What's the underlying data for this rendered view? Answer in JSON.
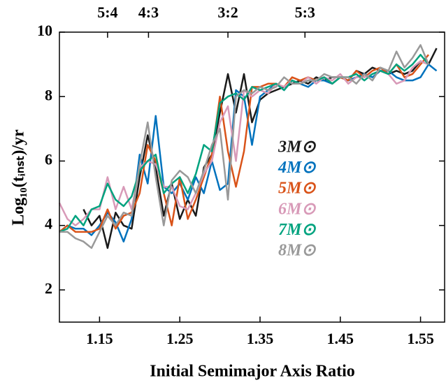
{
  "chart_data": {
    "type": "line",
    "xlabel": "Initial Semimajor Axis Ratio",
    "ylabel": "Log₁₀(tᵢₙₛₜ)/yr",
    "xlim": [
      1.1,
      1.58
    ],
    "ylim": [
      1,
      10
    ],
    "xticks": [
      1.15,
      1.25,
      1.35,
      1.45,
      1.55
    ],
    "yticks": [
      2,
      4,
      6,
      8,
      10
    ],
    "x2ticks": [
      {
        "value": 1.16,
        "label": "5:4"
      },
      {
        "value": 1.211,
        "label": "4:3"
      },
      {
        "value": 1.31,
        "label": "3:2"
      },
      {
        "value": 1.406,
        "label": "5:3"
      }
    ],
    "grid": false,
    "x": [
      1.1,
      1.11,
      1.12,
      1.13,
      1.14,
      1.15,
      1.16,
      1.17,
      1.18,
      1.19,
      1.2,
      1.21,
      1.22,
      1.23,
      1.24,
      1.25,
      1.26,
      1.27,
      1.28,
      1.29,
      1.3,
      1.31,
      1.32,
      1.33,
      1.34,
      1.35,
      1.36,
      1.37,
      1.38,
      1.39,
      1.4,
      1.41,
      1.42,
      1.43,
      1.44,
      1.45,
      1.46,
      1.47,
      1.48,
      1.49,
      1.5,
      1.51,
      1.52,
      1.53,
      1.54,
      1.55,
      1.56,
      1.57
    ],
    "series": [
      {
        "name": "3M⊙",
        "color": "#1a1a1a",
        "values": [
          null,
          null,
          null,
          4.5,
          4.0,
          4.3,
          3.3,
          4.4,
          4.0,
          3.9,
          5.5,
          6.8,
          5.8,
          4.3,
          5.3,
          4.2,
          4.8,
          4.3,
          5.8,
          6.2,
          7.5,
          8.7,
          7.5,
          8.7,
          7.2,
          7.9,
          8.1,
          8.2,
          8.3,
          8.4,
          8.5,
          8.4,
          8.6,
          8.5,
          8.6,
          8.6,
          8.5,
          8.8,
          8.7,
          8.9,
          8.8,
          8.7,
          8.8,
          8.7,
          8.8,
          9.1,
          9.0,
          9.5
        ]
      },
      {
        "name": "4M⊙",
        "color": "#0072bd",
        "values": [
          3.8,
          4.0,
          3.9,
          3.9,
          3.7,
          4.0,
          4.4,
          4.1,
          3.5,
          4.2,
          6.2,
          5.3,
          7.4,
          5.2,
          5.0,
          5.3,
          4.8,
          5.5,
          5.0,
          6.0,
          5.1,
          5.3,
          8.2,
          8.0,
          6.5,
          8.0,
          8.2,
          8.4,
          8.2,
          8.5,
          8.4,
          8.3,
          8.5,
          8.5,
          8.4,
          8.6,
          8.5,
          8.6,
          8.7,
          8.6,
          8.8,
          8.8,
          8.6,
          8.5,
          8.5,
          8.6,
          9.0,
          8.8
        ]
      },
      {
        "name": "5M⊙",
        "color": "#d95319",
        "values": [
          3.8,
          4.0,
          3.8,
          3.8,
          3.8,
          3.9,
          4.5,
          3.9,
          4.3,
          4.4,
          5.0,
          6.5,
          6.0,
          5.0,
          4.0,
          5.5,
          4.2,
          4.8,
          5.5,
          6.2,
          8.0,
          6.3,
          5.2,
          6.3,
          8.3,
          8.3,
          8.4,
          8.4,
          8.3,
          8.6,
          8.5,
          8.6,
          8.5,
          8.6,
          8.4,
          8.6,
          8.5,
          8.8,
          8.6,
          8.8,
          8.9,
          8.7,
          9.0,
          8.6,
          8.7,
          9.0,
          9.3,
          null
        ]
      },
      {
        "name": "6M⊙",
        "color": "#d89ab8",
        "values": [
          4.7,
          4.2,
          4.0,
          4.2,
          4.5,
          4.5,
          5.5,
          4.5,
          5.2,
          4.5,
          5.8,
          6.0,
          5.9,
          5.2,
          5.2,
          4.6,
          4.5,
          5.0,
          5.6,
          6.0,
          7.2,
          7.7,
          6.0,
          8.2,
          8.0,
          8.2,
          8.1,
          8.4,
          8.3,
          8.5,
          8.4,
          8.6,
          8.4,
          8.6,
          8.5,
          8.7,
          8.4,
          8.6,
          8.6,
          8.7,
          8.8,
          8.7,
          8.4,
          8.5,
          8.9,
          9.1,
          9.0,
          null
        ]
      },
      {
        "name": "7M⊙",
        "color": "#00a37f",
        "values": [
          3.8,
          3.9,
          4.3,
          4.0,
          4.5,
          4.6,
          5.3,
          4.8,
          4.6,
          4.9,
          5.7,
          6.0,
          6.2,
          5.0,
          5.3,
          5.5,
          5.0,
          5.6,
          6.5,
          6.3,
          7.8,
          8.0,
          8.1,
          7.9,
          8.3,
          8.2,
          8.3,
          8.4,
          8.2,
          8.5,
          8.4,
          8.5,
          8.5,
          8.6,
          8.4,
          8.6,
          8.6,
          8.7,
          8.5,
          8.7,
          8.8,
          8.7,
          9.0,
          8.8,
          9.0,
          9.3,
          9.0,
          null
        ]
      },
      {
        "name": "8M⊙",
        "color": "#999999",
        "values": [
          3.8,
          3.8,
          3.6,
          3.5,
          3.3,
          3.8,
          4.3,
          4.0,
          4.4,
          4.3,
          5.9,
          7.2,
          5.5,
          4.0,
          5.4,
          5.7,
          5.5,
          5.0,
          5.7,
          6.5,
          7.0,
          4.8,
          8.0,
          8.2,
          8.1,
          8.3,
          8.2,
          8.3,
          8.6,
          8.4,
          8.4,
          8.5,
          8.5,
          8.7,
          8.6,
          8.6,
          8.6,
          8.4,
          8.7,
          8.5,
          8.9,
          8.8,
          9.4,
          8.9,
          9.2,
          9.6,
          9.0,
          null
        ]
      }
    ]
  }
}
